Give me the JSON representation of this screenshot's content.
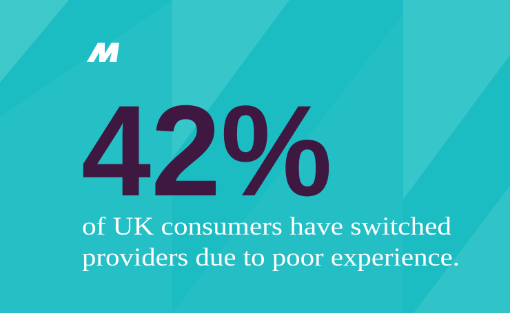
{
  "stat": "42%",
  "caption": [
    "of UK consumers have switched",
    "providers due to poor experience."
  ]
}
